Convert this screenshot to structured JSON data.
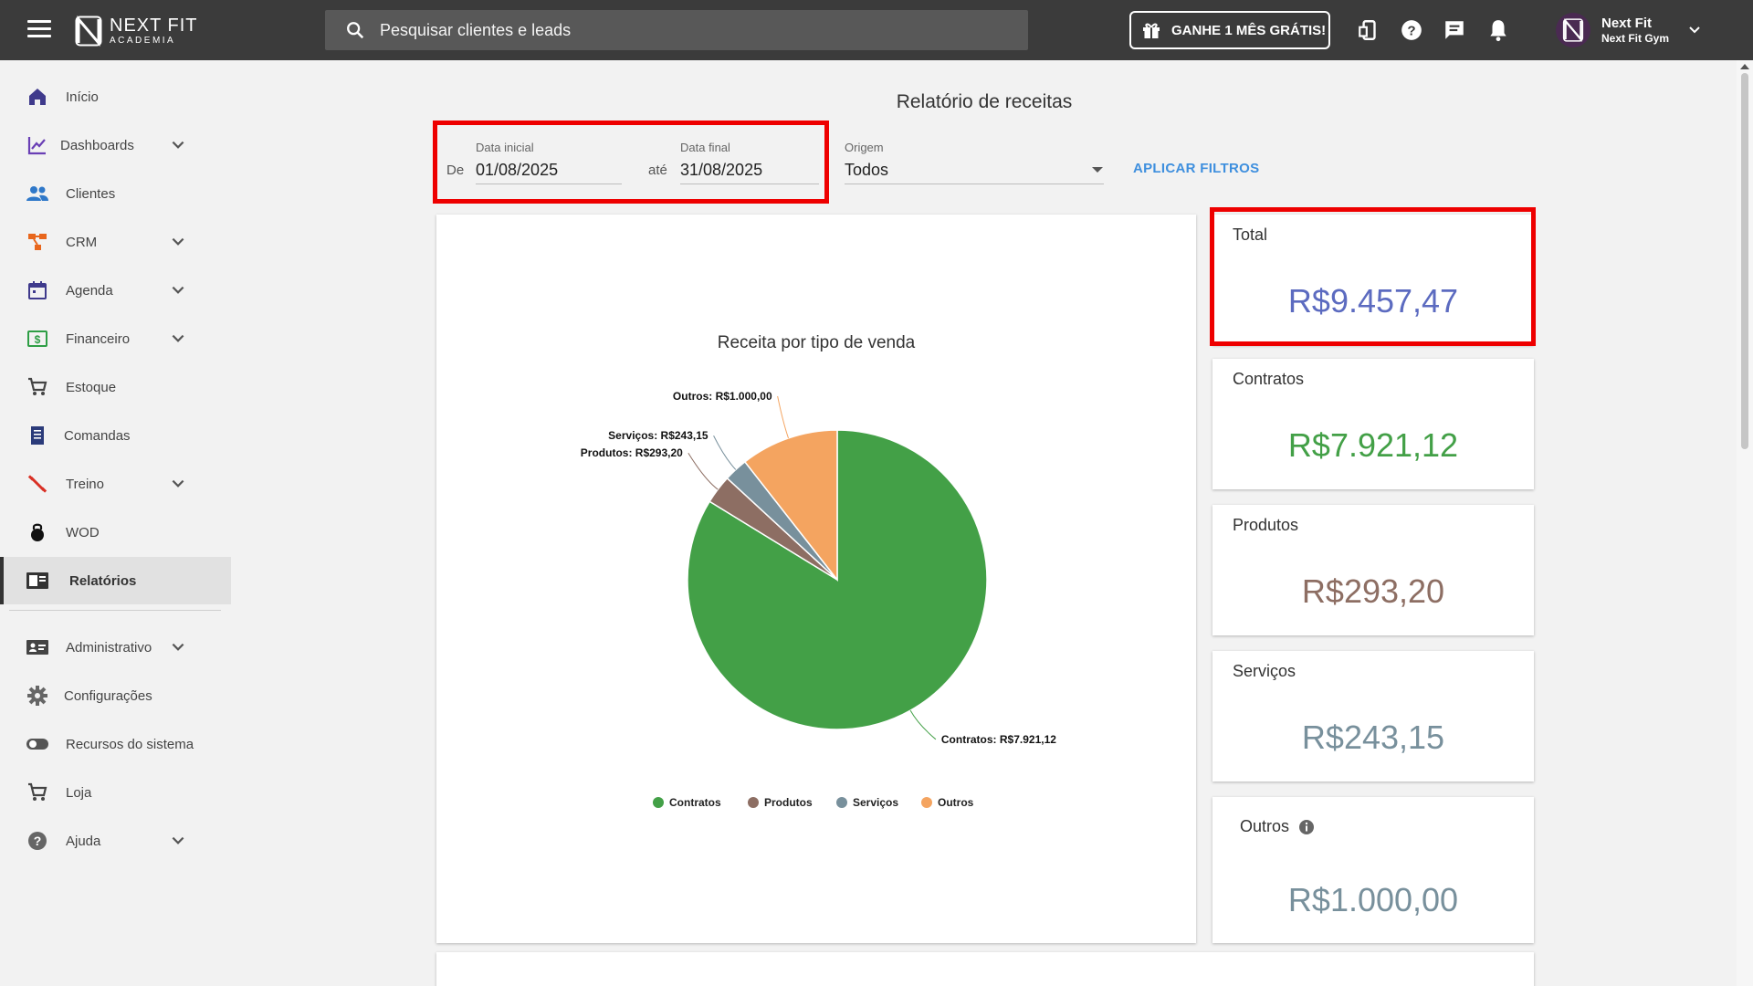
{
  "header": {
    "brand_name": "NEXT FIT",
    "brand_sub": "ACADEMIA",
    "search_placeholder": "Pesquisar clientes e leads",
    "promo_label": "GANHE 1 MÊS GRÁTIS!",
    "user_name": "Next Fit",
    "user_gym": "Next Fit Gym"
  },
  "sidebar": {
    "items": [
      {
        "label": "Início",
        "icon": "home-icon"
      },
      {
        "label": "Dashboards",
        "icon": "chart-line-icon"
      },
      {
        "label": "Clientes",
        "icon": "people-icon"
      },
      {
        "label": "CRM",
        "icon": "crm-icon"
      },
      {
        "label": "Agenda",
        "icon": "calendar-icon"
      },
      {
        "label": "Financeiro",
        "icon": "money-icon"
      },
      {
        "label": "Estoque",
        "icon": "cart-icon"
      },
      {
        "label": "Comandas",
        "icon": "receipt-icon"
      },
      {
        "label": "Treino",
        "icon": "dumbbell-icon"
      },
      {
        "label": "WOD",
        "icon": "kettlebell-icon"
      },
      {
        "label": "Relatórios",
        "icon": "report-icon"
      },
      {
        "label": "Administrativo",
        "icon": "id-card-icon"
      },
      {
        "label": "Configurações",
        "icon": "gear-icon"
      },
      {
        "label": "Recursos do sistema",
        "icon": "toggle-icon"
      },
      {
        "label": "Loja",
        "icon": "cart-icon"
      },
      {
        "label": "Ajuda",
        "icon": "help-icon"
      }
    ]
  },
  "report": {
    "title": "Relatório de receitas",
    "from_prefix": "De",
    "to_prefix": "até",
    "start_label": "Data inicial",
    "start_value": "01/08/2025",
    "end_label": "Data final",
    "end_value": "31/08/2025",
    "origin_label": "Origem",
    "origin_value": "Todos",
    "apply_label": "APLICAR FILTROS"
  },
  "stats": {
    "total": {
      "label": "Total",
      "value": "R$9.457,47"
    },
    "contratos": {
      "label": "Contratos",
      "value": "R$7.921,12"
    },
    "produtos": {
      "label": "Produtos",
      "value": "R$293,20"
    },
    "servicos": {
      "label": "Serviços",
      "value": "R$243,15"
    },
    "outros": {
      "label": "Outros",
      "value": "R$1.000,00"
    }
  },
  "colors": {
    "contratos": "#43a047",
    "produtos": "#8d6e63",
    "servicos": "#78909c",
    "outros": "#f4a460",
    "total": "#5c6bc0",
    "highlight": "#ee0000"
  },
  "chart_data": {
    "type": "pie",
    "title": "Receita por tipo de venda",
    "categories": [
      "Contratos",
      "Produtos",
      "Serviços",
      "Outros"
    ],
    "values": [
      7921.12,
      293.2,
      243.15,
      1000.0
    ],
    "labels": [
      "Contratos: R$7.921,12",
      "Produtos: R$293,20",
      "Serviços: R$243,15",
      "Outros: R$1.000,00"
    ],
    "legend_position": "bottom"
  }
}
